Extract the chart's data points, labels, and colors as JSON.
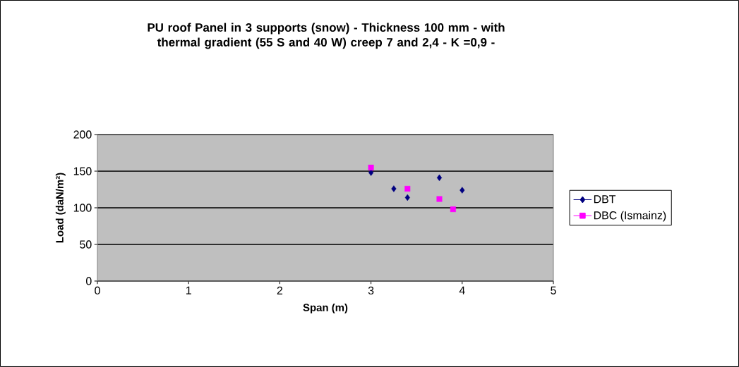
{
  "chart_data": {
    "type": "scatter",
    "title": "PU roof Panel in 3 supports (snow) - Thickness 100 mm - with thermal gradient (55 S and 40 W) creep 7 and 2,4 - K =0,9 -",
    "xlabel": "Span (m)",
    "ylabel": "Load (daN/m²)",
    "xlim": [
      0,
      5
    ],
    "ylim": [
      0,
      200
    ],
    "xticks": [
      0,
      1,
      2,
      3,
      4,
      5
    ],
    "yticks": [
      0,
      50,
      100,
      150,
      200
    ],
    "grid": "y",
    "legend": "right",
    "series": [
      {
        "name": "DBT",
        "color": "#000080",
        "marker": "diamond",
        "x": [
          3.0,
          3.25,
          3.4,
          3.75,
          4.0
        ],
        "values": [
          148,
          126,
          114,
          141,
          124
        ]
      },
      {
        "name": "DBC (Ismainz)",
        "color": "#ff00ff",
        "marker": "square",
        "x": [
          3.0,
          3.4,
          3.75,
          3.9
        ],
        "values": [
          155,
          126,
          112,
          98
        ]
      }
    ]
  }
}
